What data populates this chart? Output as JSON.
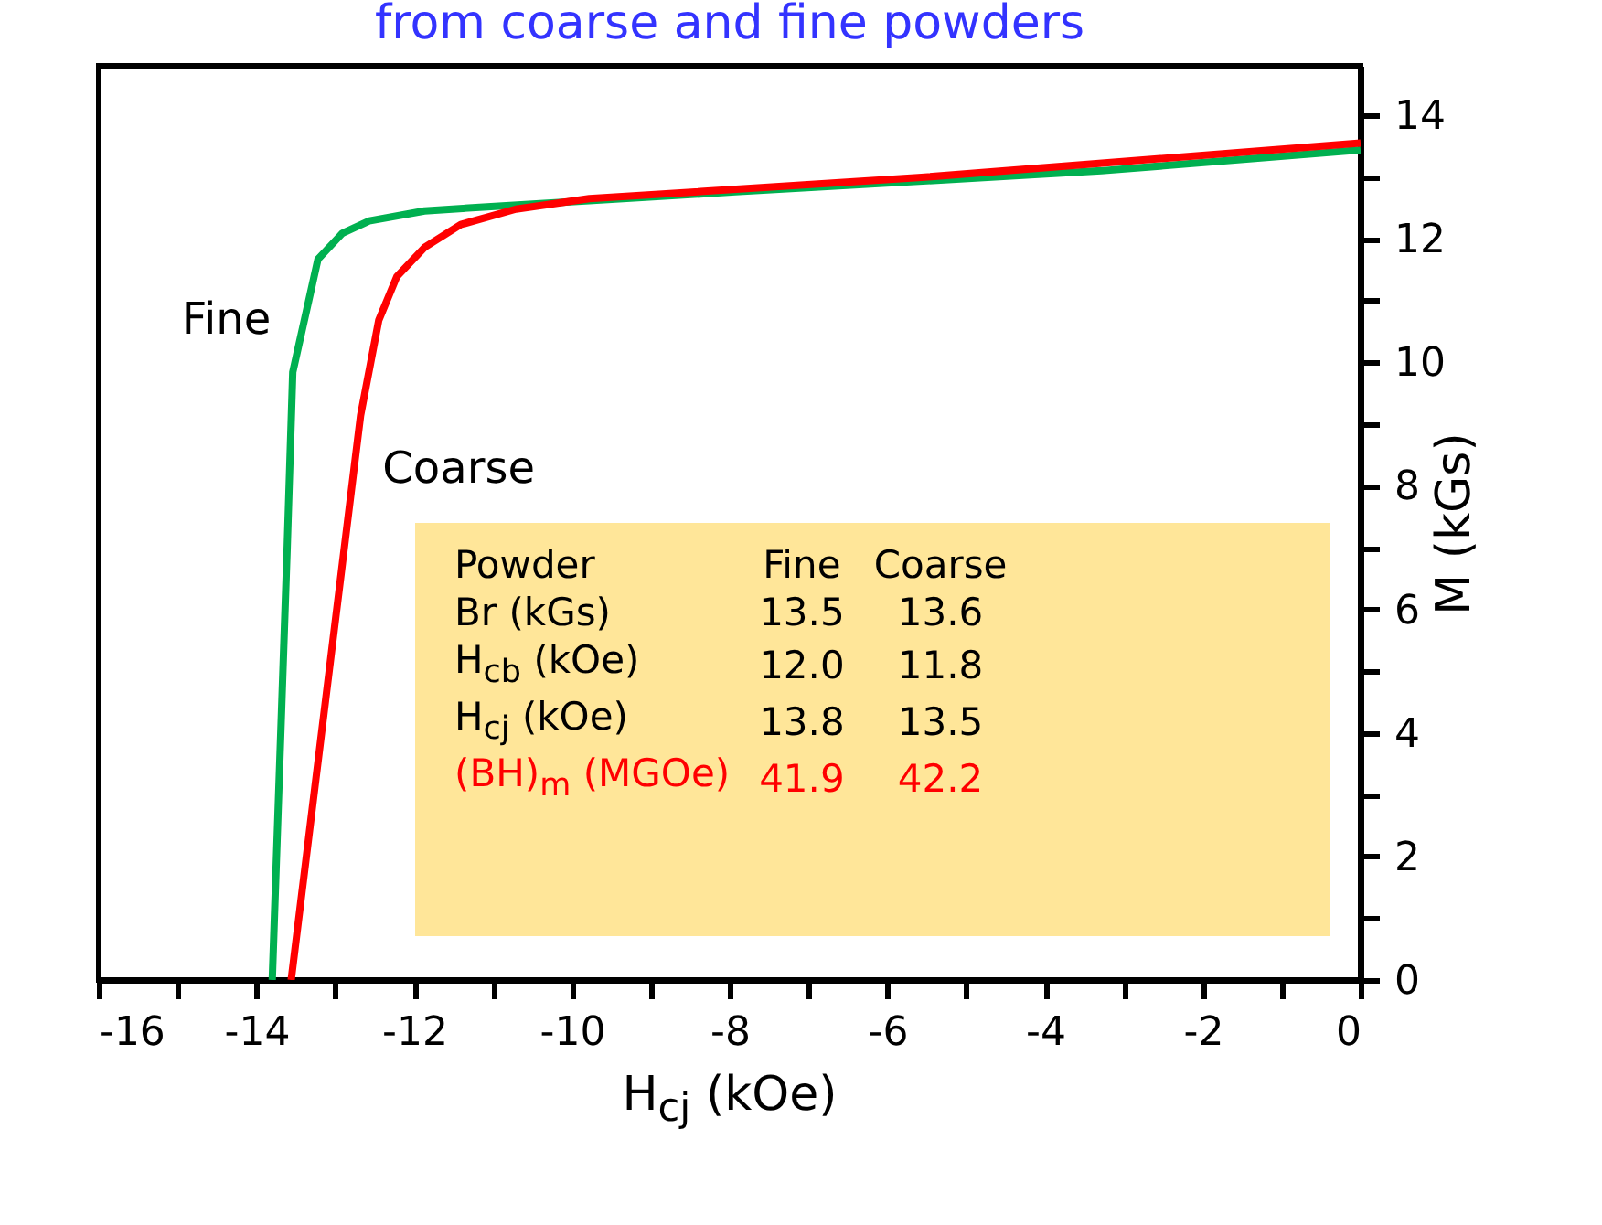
{
  "chart_data": {
    "type": "line",
    "title": "from coarse and fine powders",
    "xlabel": "H$_{cj}$ (kOe)",
    "ylabel": "M (kGs)",
    "xlim": [
      -16,
      0
    ],
    "ylim": [
      0,
      14.8
    ],
    "xticks": [
      -16,
      {
        "value": -15,
        "label": null
      },
      -14,
      {
        "value": -13,
        "label": null
      },
      -12,
      {
        "value": -11,
        "label": null
      },
      -10,
      {
        "value": -9,
        "label": null
      },
      -8,
      {
        "value": -7,
        "label": null
      },
      -6,
      {
        "value": -5,
        "label": null
      },
      -4,
      {
        "value": -3,
        "label": null
      },
      -2,
      {
        "value": -1,
        "label": null
      },
      0
    ],
    "yticks": [
      0,
      {
        "value": 1,
        "label": null
      },
      2,
      {
        "value": 3,
        "label": null
      },
      4,
      {
        "value": 5,
        "label": null
      },
      6,
      {
        "value": 7,
        "label": null
      },
      8,
      {
        "value": 9,
        "label": null
      },
      10,
      {
        "value": 11,
        "label": null
      },
      12,
      {
        "value": 13,
        "label": null
      },
      14
    ],
    "series": [
      {
        "name": "Fine",
        "color": "#00b050",
        "x": [
          -13.8,
          -13.61,
          -13.54,
          -13.22,
          -12.91,
          -12.57,
          -11.87,
          -11.17,
          -7.93,
          -3.29,
          0
        ],
        "values": [
          0,
          7.03,
          9.84,
          11.67,
          12.09,
          12.29,
          12.45,
          12.51,
          12.76,
          13.1,
          13.44
        ]
      },
      {
        "name": "Coarse",
        "color": "#ff0000",
        "x": [
          -13.56,
          -12.91,
          -12.68,
          -12.45,
          -12.22,
          -11.87,
          -11.41,
          -10.71,
          -9.78,
          -5.61,
          0
        ],
        "values": [
          0,
          6.75,
          9.14,
          10.68,
          11.39,
          11.86,
          12.23,
          12.48,
          12.65,
          12.99,
          13.55
        ]
      }
    ],
    "annotations": [
      "Powder",
      "Fine",
      "Coarse",
      "Br  (kGs)",
      "13.5",
      "13.6",
      "H$_{cb}$ (kOe)",
      "12.0",
      "11.8",
      "H$_{cj}$ (kOe)",
      "13.8",
      "13.5",
      "(BH)$_{m}$  (MGOe)",
      "41.9",
      "42.2"
    ]
  }
}
